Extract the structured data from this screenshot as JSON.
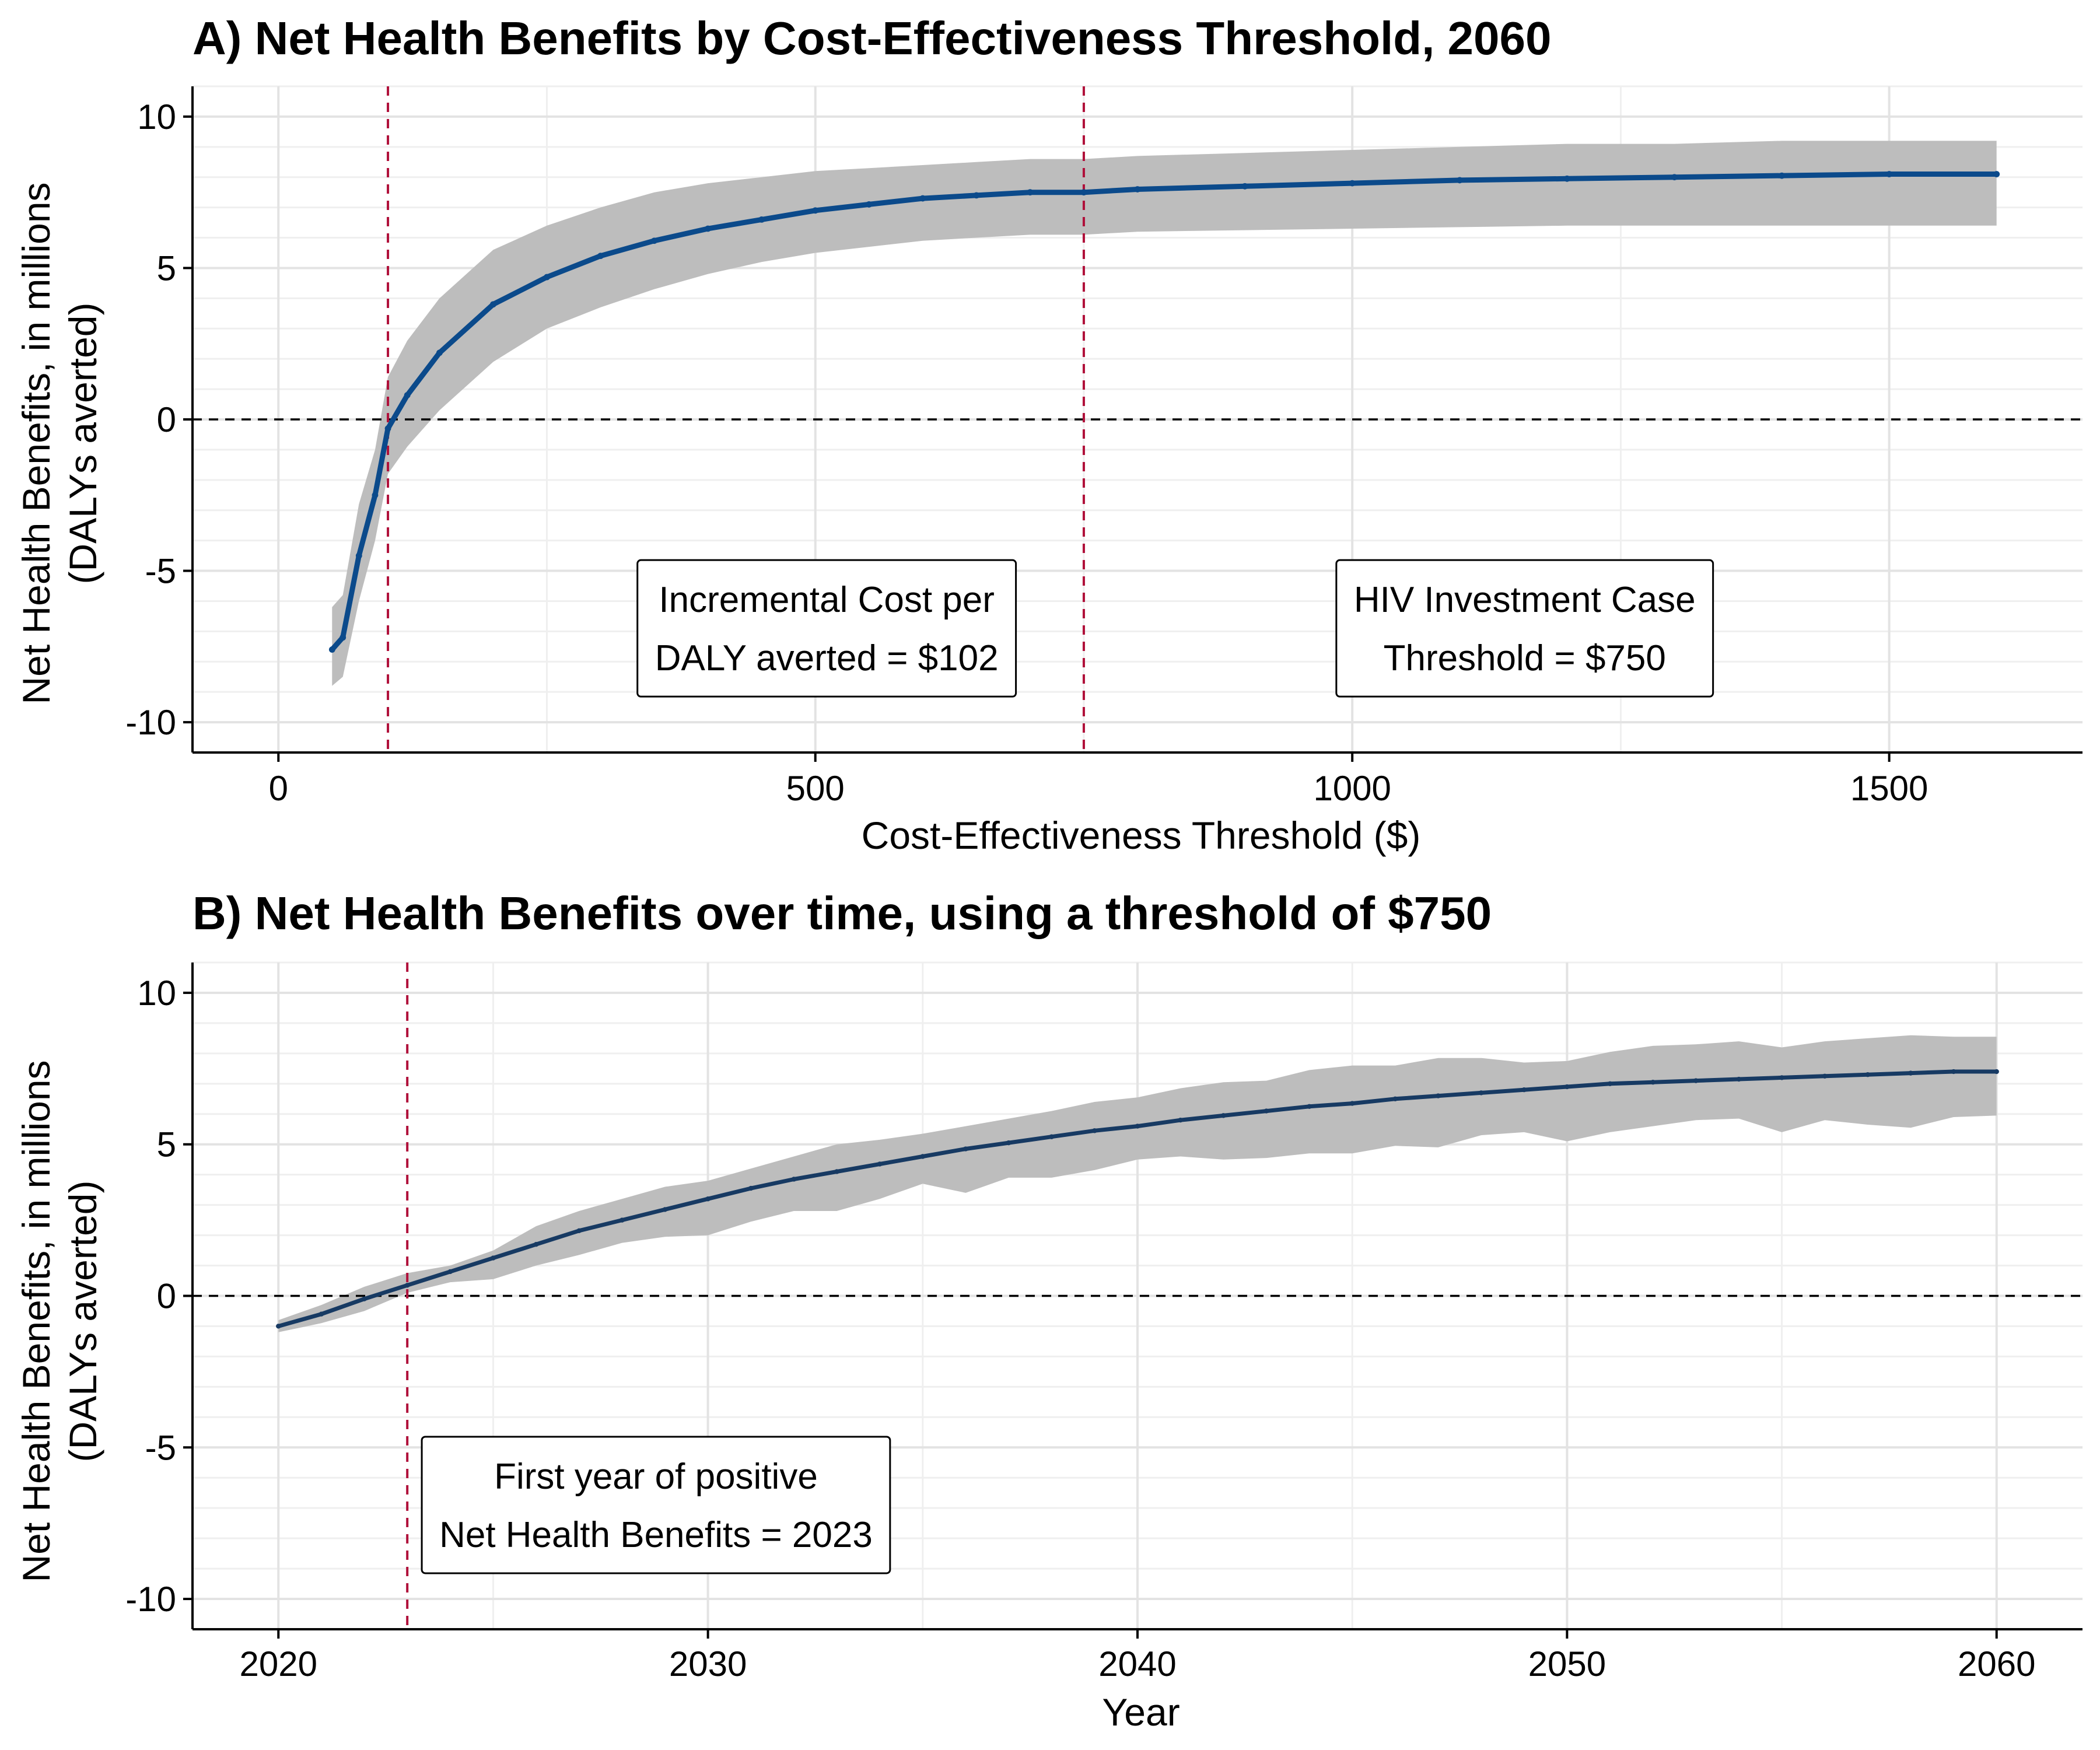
{
  "colors": {
    "series_line": "#0b4a8b",
    "series_line_b": "#173a63",
    "ribbon": "#bdbdbd",
    "threshold_line": "#b0103a",
    "zero_line": "#000000",
    "grid_major": "#e3e3e3",
    "grid_minor": "#efefef"
  },
  "chart_data": [
    {
      "id": "A",
      "type": "line",
      "title": "A) Net Health Benefits by Cost-Effectiveness Threshold, 2060",
      "xlabel": "Cost-Effectiveness Threshold ($)",
      "ylabel": [
        "Net Health Benefits, in millions",
        "(DALYs averted)"
      ],
      "xlim": [
        -80,
        1680
      ],
      "ylim": [
        -11,
        11
      ],
      "x_ticks": [
        0,
        500,
        1000,
        1500
      ],
      "x_tick_labels": [
        "0",
        "500",
        "1000",
        "1500"
      ],
      "y_ticks": [
        -10,
        -5,
        0,
        5,
        10
      ],
      "y_tick_labels": [
        "-10",
        "-5",
        "0",
        "5",
        "10"
      ],
      "grid": true,
      "legend": "none",
      "series": [
        {
          "x": [
            50,
            60,
            75,
            90,
            102,
            120,
            150,
            200,
            250,
            300,
            350,
            400,
            450,
            500,
            550,
            600,
            650,
            700,
            750,
            800,
            900,
            1000,
            1100,
            1200,
            1300,
            1400,
            1500,
            1600
          ],
          "y": [
            -7.6,
            -7.2,
            -4.5,
            -2.5,
            -0.3,
            0.8,
            2.2,
            3.8,
            4.7,
            5.4,
            5.9,
            6.3,
            6.6,
            6.9,
            7.1,
            7.3,
            7.4,
            7.5,
            7.5,
            7.6,
            7.7,
            7.8,
            7.9,
            7.95,
            8.0,
            8.05,
            8.1,
            8.1
          ],
          "lower": [
            -8.8,
            -8.5,
            -6.0,
            -4.0,
            -1.8,
            -0.9,
            0.3,
            1.9,
            3.0,
            3.7,
            4.3,
            4.8,
            5.2,
            5.5,
            5.7,
            5.9,
            6.0,
            6.1,
            6.1,
            6.2,
            6.25,
            6.3,
            6.35,
            6.4,
            6.4,
            6.4,
            6.4,
            6.4
          ],
          "upper": [
            -6.2,
            -5.8,
            -2.8,
            -1.0,
            1.4,
            2.6,
            4.0,
            5.6,
            6.4,
            7.0,
            7.5,
            7.8,
            8.0,
            8.2,
            8.3,
            8.4,
            8.5,
            8.6,
            8.6,
            8.7,
            8.8,
            8.9,
            9.0,
            9.1,
            9.1,
            9.2,
            9.2,
            9.2
          ]
        }
      ],
      "hlines": [
        0
      ],
      "vlines": [
        102,
        750
      ],
      "annotations": [
        {
          "lines": [
            "Incremental Cost per",
            "DALY averted = $102"
          ],
          "x": 315,
          "y": -6.9
        },
        {
          "lines": [
            "HIV Investment Case",
            "Threshold = $750"
          ],
          "x": 965,
          "y": -6.9
        }
      ]
    },
    {
      "id": "B",
      "type": "line",
      "title": "B) Net Health Benefits over time, using a threshold of $750",
      "xlabel": "Year",
      "ylabel": [
        "Net Health Benefits, in millions",
        "(DALYs averted)"
      ],
      "xlim": [
        2018,
        2062
      ],
      "ylim": [
        -11,
        11
      ],
      "x_ticks": [
        2020,
        2030,
        2040,
        2050,
        2060
      ],
      "x_tick_labels": [
        "2020",
        "2030",
        "2040",
        "2050",
        "2060"
      ],
      "y_ticks": [
        -10,
        -5,
        0,
        5,
        10
      ],
      "y_tick_labels": [
        "-10",
        "-5",
        "0",
        "5",
        "10"
      ],
      "grid": true,
      "legend": "none",
      "series": [
        {
          "x": [
            2020,
            2021,
            2022,
            2023,
            2024,
            2025,
            2026,
            2027,
            2028,
            2029,
            2030,
            2031,
            2032,
            2033,
            2034,
            2035,
            2036,
            2037,
            2038,
            2039,
            2040,
            2041,
            2042,
            2043,
            2044,
            2045,
            2046,
            2047,
            2048,
            2049,
            2050,
            2051,
            2052,
            2053,
            2054,
            2055,
            2056,
            2057,
            2058,
            2059,
            2060
          ],
          "y": [
            -1.0,
            -0.6,
            -0.1,
            0.35,
            0.8,
            1.25,
            1.7,
            2.15,
            2.5,
            2.85,
            3.2,
            3.55,
            3.85,
            4.1,
            4.35,
            4.6,
            4.85,
            5.05,
            5.25,
            5.45,
            5.6,
            5.8,
            5.95,
            6.1,
            6.25,
            6.35,
            6.5,
            6.6,
            6.7,
            6.8,
            6.9,
            7.0,
            7.05,
            7.1,
            7.15,
            7.2,
            7.25,
            7.3,
            7.35,
            7.4,
            7.4
          ],
          "lower": [
            -1.2,
            -0.9,
            -0.5,
            0.1,
            0.45,
            0.55,
            1.0,
            1.35,
            1.75,
            1.95,
            2.0,
            2.45,
            2.8,
            2.8,
            3.2,
            3.7,
            3.4,
            3.9,
            3.9,
            4.15,
            4.5,
            4.6,
            4.5,
            4.55,
            4.7,
            4.7,
            4.95,
            4.9,
            5.3,
            5.4,
            5.1,
            5.4,
            5.6,
            5.8,
            5.85,
            5.4,
            5.8,
            5.65,
            5.55,
            5.9,
            5.95
          ],
          "upper": [
            -0.8,
            -0.3,
            0.3,
            0.75,
            1.0,
            1.5,
            2.3,
            2.8,
            3.2,
            3.6,
            3.8,
            4.2,
            4.6,
            5.0,
            5.15,
            5.35,
            5.6,
            5.85,
            6.1,
            6.4,
            6.55,
            6.85,
            7.05,
            7.1,
            7.45,
            7.6,
            7.6,
            7.85,
            7.85,
            7.7,
            7.75,
            8.05,
            8.25,
            8.3,
            8.4,
            8.2,
            8.4,
            8.5,
            8.6,
            8.55,
            8.55
          ]
        }
      ],
      "hlines": [
        0
      ],
      "vlines": [
        2023
      ],
      "annotations": [
        {
          "lines": [
            "First year of positive",
            "Net Health Benefits = 2023"
          ],
          "x": 2023.9,
          "y": -6.9
        }
      ]
    }
  ]
}
